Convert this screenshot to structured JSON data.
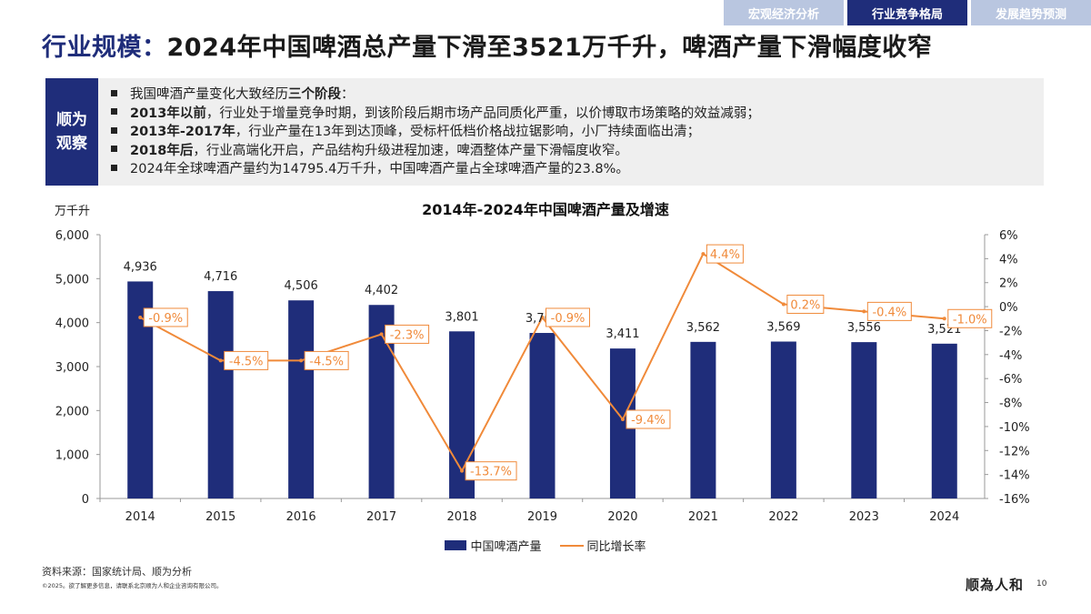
{
  "tabs": [
    {
      "label": "宏观经济分析",
      "active": false
    },
    {
      "label": "行业竞争格局",
      "active": true
    },
    {
      "label": "发展趋势预测",
      "active": false
    }
  ],
  "header": {
    "title_keyword": "行业规模：",
    "title_rest": "2024年中国啤酒总产量下滑至3521万千升，啤酒产量下滑幅度收窄"
  },
  "observation": {
    "tag_line1": "顺为",
    "tag_line2": "观察",
    "items": [
      {
        "bold": "",
        "pre": "我国啤酒产量变化大致经历",
        "bold_mid": "三个阶段",
        "text": "："
      },
      {
        "bold": "2013年以前",
        "pre": "",
        "bold_mid": "",
        "text": "，行业处于增量竞争时期，到该阶段后期市场产品同质化严重，以价博取市场策略的效益减弱；"
      },
      {
        "bold": "2013年-2017年",
        "pre": "",
        "bold_mid": "",
        "text": "，行业产量在13年到达顶峰，受标杆低档价格战拉锯影响，小厂持续面临出清；"
      },
      {
        "bold": "2018年后",
        "pre": "",
        "bold_mid": "",
        "text": "，行业高端化开启，产品结构升级进程加速，啤酒整体产量下滑幅度收窄。"
      },
      {
        "bold": "",
        "pre": "",
        "bold_mid": "",
        "text": "2024年全球啤酒产量约为14795.4万千升，中国啤酒产量占全球啤酒产量的23.8%。"
      }
    ]
  },
  "chart_data": {
    "type": "bar",
    "title": "2014年-2024年中国啤酒产量及增速",
    "ylabel": "万千升",
    "categories": [
      "2014",
      "2015",
      "2016",
      "2017",
      "2018",
      "2019",
      "2020",
      "2021",
      "2022",
      "2023",
      "2024"
    ],
    "series": [
      {
        "name": "中国啤酒产量",
        "type": "bar",
        "axis": "left",
        "color": "#1f2d7a",
        "values": [
          4936,
          4716,
          4506,
          4402,
          3801,
          3765,
          3411,
          3562,
          3569,
          3556,
          3521
        ],
        "labels": [
          "4,936",
          "4,716",
          "4,506",
          "4,402",
          "3,801",
          "3,765",
          "3,411",
          "3,562",
          "3,569",
          "3,556",
          "3,521"
        ]
      },
      {
        "name": "同比增长率",
        "type": "line",
        "axis": "right",
        "color": "#f08a3a",
        "values": [
          -0.9,
          -4.5,
          -4.5,
          -2.3,
          -13.7,
          -0.9,
          -9.4,
          4.4,
          0.2,
          -0.4,
          -1.0
        ],
        "labels": [
          "-0.9%",
          "-4.5%",
          "-4.5%",
          "-2.3%",
          "-13.7%",
          "-0.9%",
          "-9.4%",
          "4.4%",
          "0.2%",
          "-0.4%",
          "-1.0%"
        ]
      }
    ],
    "ylim": [
      0,
      6000
    ],
    "y_ticks": [
      "0",
      "1,000",
      "2,000",
      "3,000",
      "4,000",
      "5,000",
      "6,000"
    ],
    "y2lim": [
      -16,
      6
    ],
    "y2_ticks": [
      "-16%",
      "-14%",
      "-12%",
      "-10%",
      "-8%",
      "-6%",
      "-4%",
      "-2%",
      "0%",
      "2%",
      "4%",
      "6%"
    ],
    "grid": false,
    "legend": "bottom"
  },
  "legend": {
    "bar_label": "中国啤酒产量",
    "line_label": "同比增长率"
  },
  "footer": {
    "source": "资料来源：国家统计局、顺为分析",
    "copyright": "©2025。欲了解更多信息，请联系北京顺为人和企业咨询有限公司。",
    "logo": "顺為人和",
    "page": "10"
  }
}
